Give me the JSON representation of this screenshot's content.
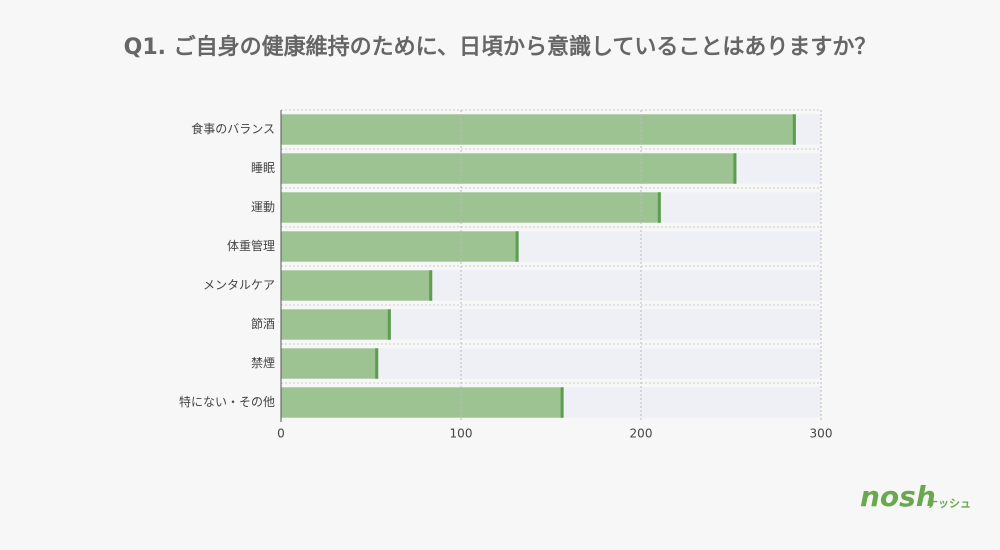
{
  "chart_data": {
    "type": "hbar",
    "title": "Q1. ご自身の健康維持のために、日頃から意識していることはありますか？",
    "categories": [
      "食事のバランス",
      "睡眠",
      "運動",
      "体重管理",
      "メンタルケア",
      "節酒",
      "禁煙",
      "特にない・その他"
    ],
    "values": [
      286,
      253,
      211,
      132,
      84,
      61,
      54,
      157
    ],
    "color": "#9dc393",
    "edge_color": "#5c9d4f",
    "track_color": "#eef0f5",
    "xlim": [
      0,
      300
    ],
    "xticks": [
      0,
      100,
      200,
      300
    ],
    "grid": true
  },
  "logo": {
    "text": "nosh",
    "subtext": "ナッシュ"
  }
}
